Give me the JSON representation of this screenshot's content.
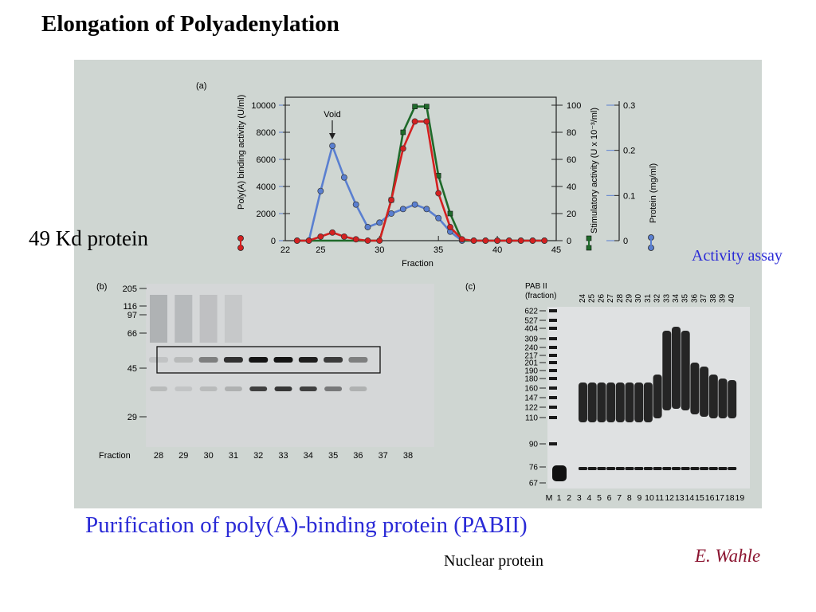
{
  "slide": {
    "title": "Elongation of Polyadenylation",
    "side_label": "49 Kd protein",
    "assay_label": "Activity assay",
    "caption": "Purification of poly(A)-binding protein (PABII)",
    "author": "E. Wahle",
    "nuclear_label": "Nuclear protein"
  },
  "panel_a": {
    "letter": "(a)",
    "void_label": "Void",
    "left_axis_label": "Poly(A) binding activity (U/ml)",
    "mid_axis_label": "Stimulatory activity (U x 10⁻³/ml)",
    "right_axis_label": "Protein (mg/ml)",
    "left_ticks": [
      "0",
      "2000",
      "4000",
      "6000",
      "8000",
      "10000"
    ],
    "mid_ticks": [
      "0",
      "20",
      "40",
      "60",
      "80",
      "100"
    ],
    "right_ticks": [
      "0",
      "0.1",
      "0.2",
      "0.3"
    ],
    "x_ticks": [
      "22",
      "25",
      "30",
      "35",
      "40",
      "45"
    ],
    "x_label": "Fraction",
    "colors": {
      "binding": "#d42020",
      "stimulatory": "#1f6a2a",
      "protein": "#5a7fd0"
    }
  },
  "chart_data": {
    "type": "line",
    "x": [
      23,
      24,
      25,
      26,
      27,
      28,
      29,
      30,
      31,
      32,
      33,
      34,
      35,
      36,
      37,
      38,
      39,
      40,
      41,
      42,
      43,
      44
    ],
    "xlim": [
      22,
      45
    ],
    "xlabel": "Fraction",
    "series": [
      {
        "name": "Poly(A) binding activity (U/ml)",
        "axis": "left",
        "ylim": [
          0,
          10000
        ],
        "values": [
          0,
          0,
          300,
          600,
          300,
          100,
          0,
          0,
          3000,
          6800,
          8800,
          8800,
          3500,
          1000,
          100,
          0,
          0,
          0,
          0,
          0,
          0,
          0
        ]
      },
      {
        "name": "Stimulatory activity (U x 10⁻³/ml)",
        "axis": "mid",
        "ylim": [
          0,
          100
        ],
        "values": [
          0,
          0,
          0,
          0,
          0,
          0,
          0,
          0,
          30,
          80,
          99,
          99,
          48,
          20,
          0,
          0,
          0,
          0,
          0,
          0,
          0,
          0
        ]
      },
      {
        "name": "Protein (mg/ml)",
        "axis": "right",
        "ylim": [
          0,
          0.3
        ],
        "values": [
          0,
          0,
          0.11,
          0.21,
          0.14,
          0.08,
          0.03,
          0.04,
          0.06,
          0.07,
          0.08,
          0.07,
          0.05,
          0.02,
          0,
          0,
          0,
          0,
          0,
          0,
          0,
          0
        ]
      }
    ]
  },
  "panel_b": {
    "letter": "(b)",
    "markers": [
      "205",
      "116",
      "97",
      "66",
      "45",
      "29"
    ],
    "fraction_label": "Fraction",
    "fractions": [
      "28",
      "29",
      "30",
      "31",
      "32",
      "33",
      "34",
      "35",
      "36",
      "37",
      "38"
    ],
    "band_49_intensity": [
      0.1,
      0.15,
      0.45,
      0.85,
      1,
      1,
      0.95,
      0.8,
      0.45,
      0,
      0
    ],
    "band_lower_intensity": [
      0.15,
      0.1,
      0.15,
      0.2,
      0.8,
      0.85,
      0.8,
      0.5,
      0.2,
      0,
      0
    ]
  },
  "panel_c": {
    "letter": "(c)",
    "header_line1": "PAB II",
    "header_line2": "(fraction)",
    "markers": [
      "622",
      "527",
      "404",
      "309",
      "240",
      "217",
      "201",
      "190",
      "180",
      "160",
      "147",
      "122",
      "110",
      "90",
      "76",
      "67"
    ],
    "fractions_top": [
      "24",
      "25",
      "26",
      "27",
      "28",
      "29",
      "30",
      "31",
      "32",
      "33",
      "34",
      "35",
      "36",
      "37",
      "38",
      "39",
      "40"
    ],
    "lanes_bottom": [
      "M",
      "1",
      "2",
      "3",
      "4",
      "5",
      "6",
      "7",
      "8",
      "9",
      "10",
      "11",
      "12",
      "13",
      "14",
      "15",
      "16",
      "17",
      "18",
      "19"
    ]
  }
}
